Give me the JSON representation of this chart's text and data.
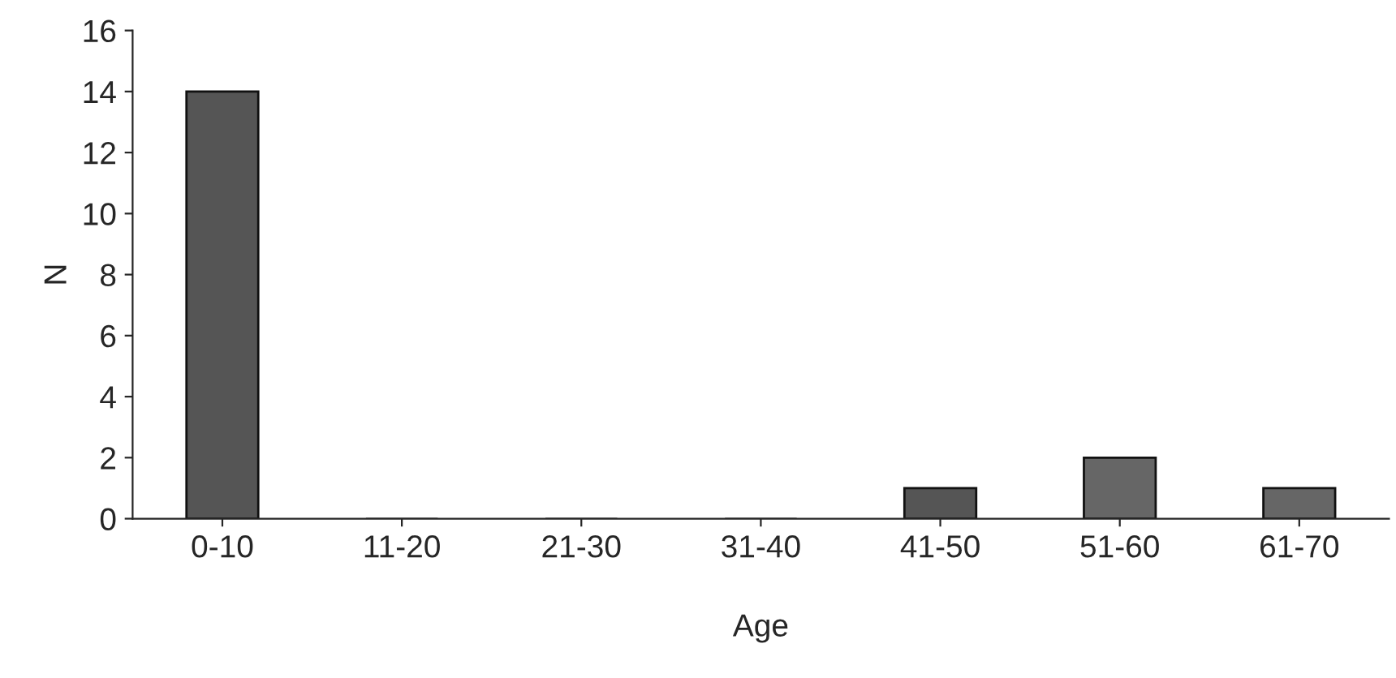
{
  "chart_data": {
    "type": "bar",
    "xlabel": "Age",
    "ylabel": "N",
    "categories": [
      "0-10",
      "11-20",
      "21-30",
      "31-40",
      "41-50",
      "51-60",
      "61-70"
    ],
    "values": [
      14,
      0,
      0,
      0,
      1,
      2,
      1
    ],
    "colors": [
      "#555555",
      "#666666",
      "#666666",
      "#666666",
      "#555555",
      "#666666",
      "#666666"
    ],
    "ylim": [
      0,
      16
    ],
    "yticks": [
      0,
      2,
      4,
      6,
      8,
      10,
      12,
      14,
      16
    ],
    "grid": false,
    "legend": false
  }
}
